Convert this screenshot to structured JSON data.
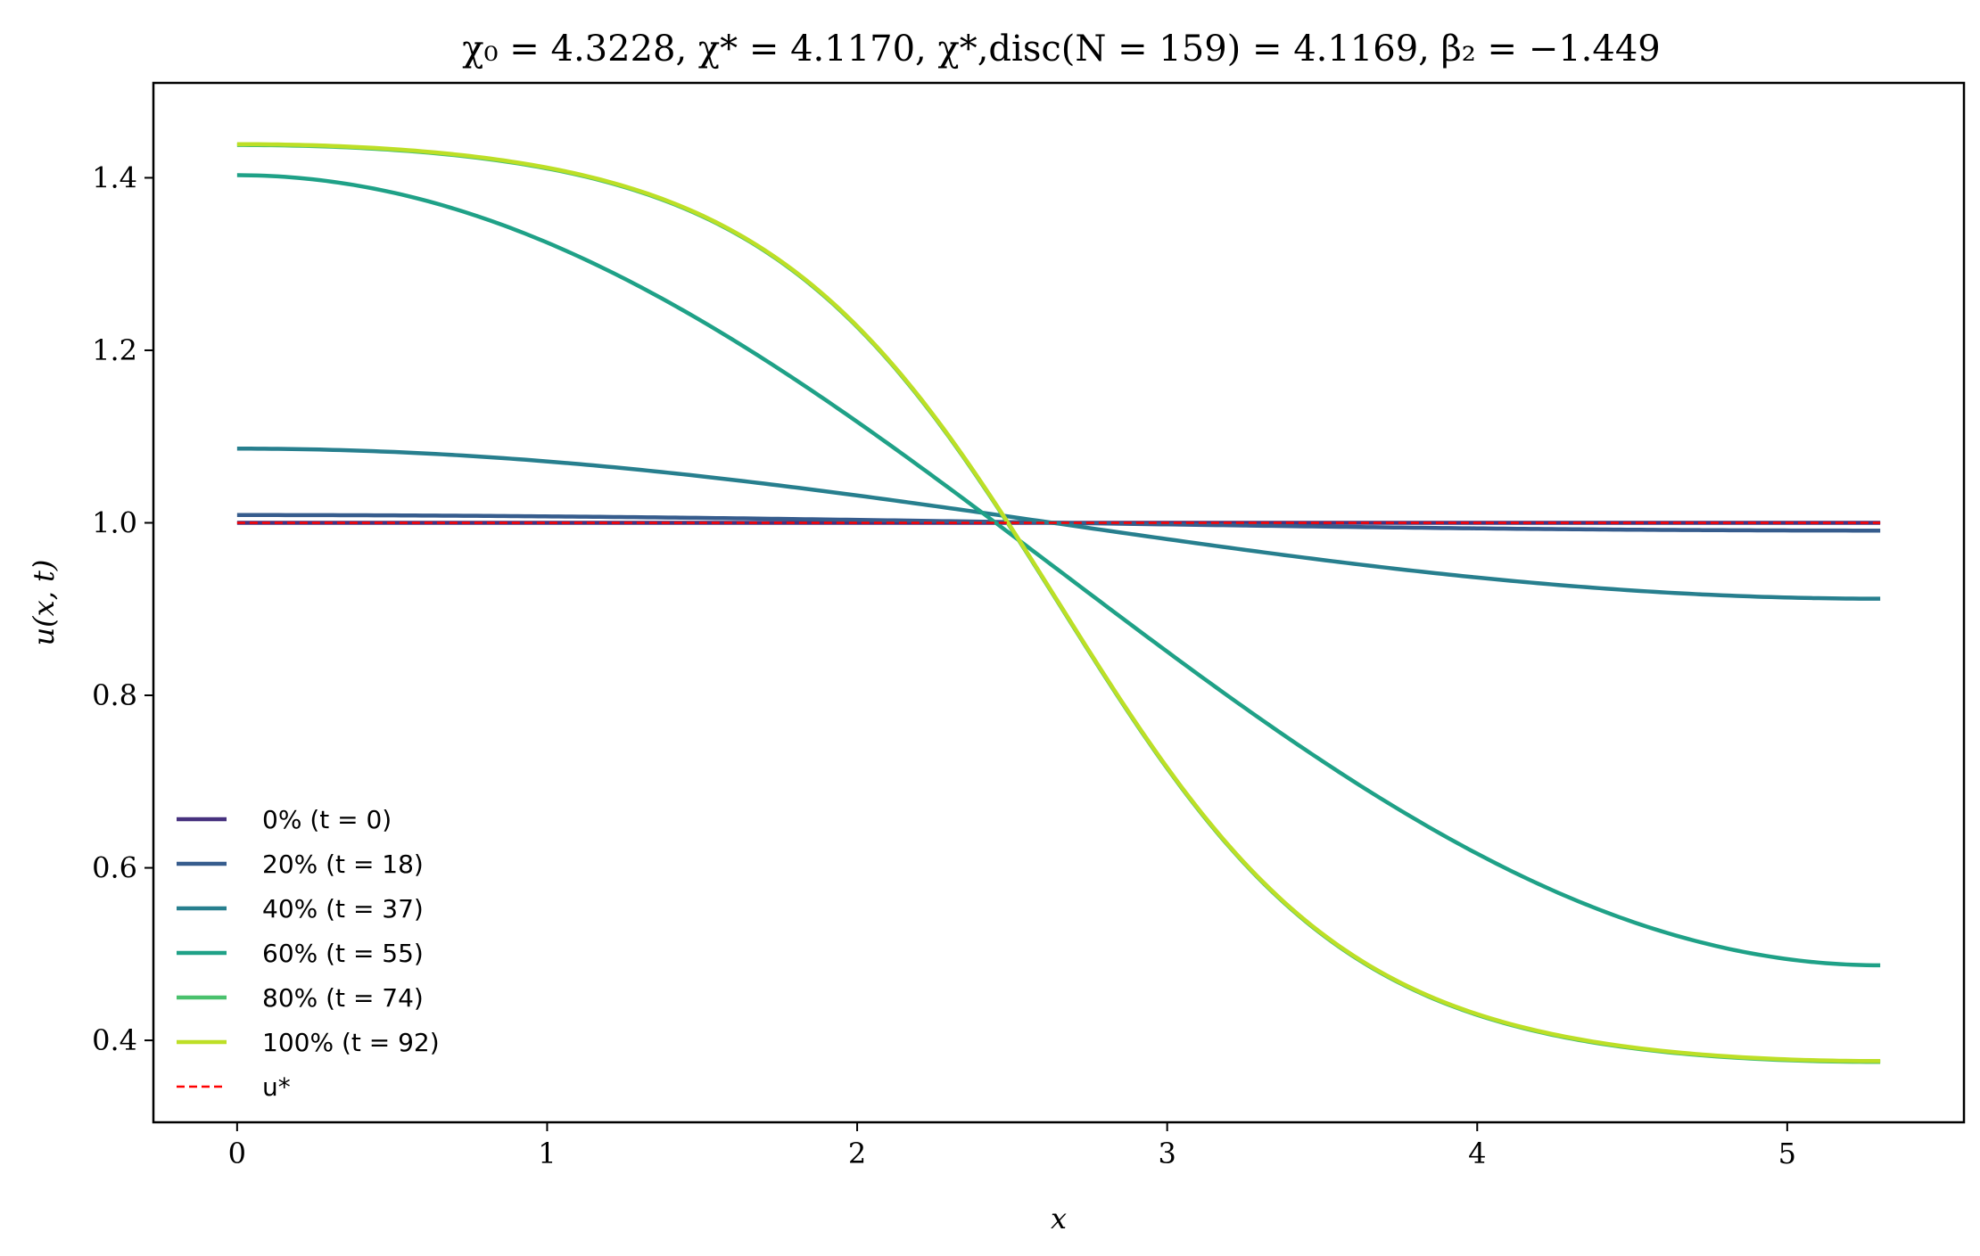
{
  "chart_data": {
    "type": "line",
    "title": "χ₀ = 4.3228,  χ* = 4.1170,  χ*,disc(N = 159) = 4.1169,  β₂ = −1.449",
    "xlabel": "x",
    "ylabel": "u(x, t)",
    "xlim": [
      -0.27,
      5.57
    ],
    "ylim": [
      0.305,
      1.51
    ],
    "x_ticks": [
      0,
      1,
      2,
      3,
      4,
      5
    ],
    "x_tick_labels": [
      "0",
      "1",
      "2",
      "3",
      "4",
      "5"
    ],
    "y_ticks": [
      0.4,
      0.6,
      0.8,
      1.0,
      1.2,
      1.4
    ],
    "y_tick_labels": [
      "0.4",
      "0.6",
      "0.8",
      "1.0",
      "1.2",
      "1.4"
    ],
    "grid": false,
    "legend_position": "bottom-left",
    "domain_length": 5.3,
    "series": [
      {
        "name": "0% (t = 0)",
        "color": "#46317e",
        "profile": "cos",
        "mean": 1.0,
        "amplitude": 0.0
      },
      {
        "name": "20% (t = 18)",
        "color": "#365c8d",
        "profile": "cos",
        "mean": 1.0,
        "amplitude": 0.009
      },
      {
        "name": "40% (t = 37)",
        "color": "#277f8e",
        "profile": "cos",
        "mean": 0.999,
        "amplitude": 0.087
      },
      {
        "name": "60% (t = 55)",
        "color": "#1fa187",
        "profile": "cos",
        "mean": 0.945,
        "amplitude": 0.458
      },
      {
        "name": "80% (t = 74)",
        "color": "#4ac16d",
        "profile": "smooth",
        "shape": 1.7,
        "min": 0.375,
        "max": 1.438
      },
      {
        "name": "100% (t = 92)",
        "color": "#bddf26",
        "profile": "smooth",
        "shape": 1.7,
        "min": 0.376,
        "max": 1.439
      }
    ],
    "reference_line": {
      "name": "u*",
      "y": 1.0,
      "color": "#ff0000",
      "style": "dashed"
    }
  }
}
